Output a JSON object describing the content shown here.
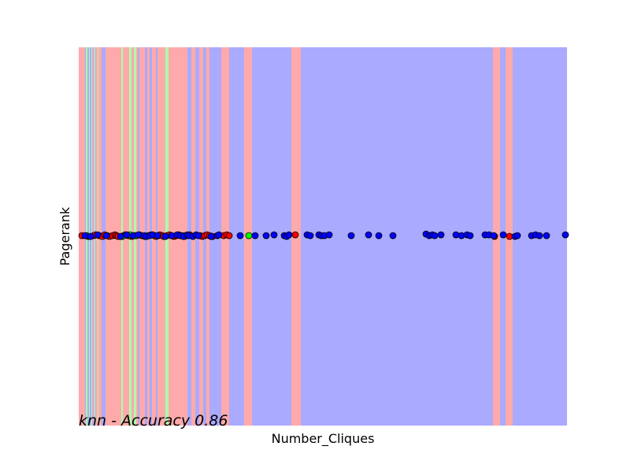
{
  "chart_data": {
    "type": "scatter",
    "title": "",
    "xlabel": "Number_Cliques",
    "ylabel": "Pagerank",
    "annotation": "knn - Accuracy 0.86",
    "xticks": [],
    "yticks": [],
    "xlim": [
      0,
      620
    ],
    "ylim": [
      0,
      480
    ],
    "grid": false,
    "legend": "none",
    "background_color": "#AAAAFF",
    "region_colors": {
      "red": "#FFAAAA",
      "blue": "#AAAAFF",
      "green": "#AAFFAA"
    },
    "decision_regions": [
      {
        "class": "red",
        "x0": 0,
        "x1": 8
      },
      {
        "class": "green",
        "x0": 9,
        "x1": 11
      },
      {
        "class": "green",
        "x0": 13,
        "x1": 14
      },
      {
        "class": "green",
        "x0": 16,
        "x1": 17
      },
      {
        "class": "red",
        "x0": 18,
        "x1": 20
      },
      {
        "class": "green",
        "x0": 20,
        "x1": 21
      },
      {
        "class": "red",
        "x0": 22,
        "x1": 24
      },
      {
        "class": "green",
        "x0": 24,
        "x1": 25
      },
      {
        "class": "red",
        "x0": 25,
        "x1": 29
      },
      {
        "class": "red",
        "x0": 34,
        "x1": 54
      },
      {
        "class": "green",
        "x0": 54,
        "x1": 56
      },
      {
        "class": "red",
        "x0": 56,
        "x1": 64
      },
      {
        "class": "green",
        "x0": 64,
        "x1": 67
      },
      {
        "class": "red",
        "x0": 67,
        "x1": 70
      },
      {
        "class": "green",
        "x0": 70,
        "x1": 73
      },
      {
        "class": "red",
        "x0": 73,
        "x1": 75
      },
      {
        "class": "red",
        "x0": 77,
        "x1": 84
      },
      {
        "class": "red",
        "x0": 87,
        "x1": 90
      },
      {
        "class": "red",
        "x0": 93,
        "x1": 98
      },
      {
        "class": "red",
        "x0": 100,
        "x1": 110
      },
      {
        "class": "green",
        "x0": 110,
        "x1": 114
      },
      {
        "class": "red",
        "x0": 114,
        "x1": 138
      },
      {
        "class": "red",
        "x0": 143,
        "x1": 148
      },
      {
        "class": "red",
        "x0": 153,
        "x1": 158
      },
      {
        "class": "red",
        "x0": 162,
        "x1": 166
      },
      {
        "class": "red",
        "x0": 181,
        "x1": 191
      },
      {
        "class": "red",
        "x0": 210,
        "x1": 220
      },
      {
        "class": "red",
        "x0": 270,
        "x1": 282
      },
      {
        "class": "red",
        "x0": 526,
        "x1": 535
      },
      {
        "class": "red",
        "x0": 542,
        "x1": 551
      }
    ],
    "point_colors": {
      "red": "#FF0000",
      "blue": "#0000FF",
      "green": "#00FF00"
    },
    "series": [
      {
        "class": "red",
        "x": [
          4,
          12,
          19,
          21,
          26,
          30,
          33,
          36,
          39,
          43,
          46,
          48,
          50,
          57,
          59,
          63,
          67,
          71,
          73,
          77,
          80,
          84,
          88,
          92,
          96,
          98,
          101,
          103,
          106,
          108,
          112,
          115,
          118,
          121,
          124,
          127,
          130,
          134,
          137,
          141,
          154,
          157,
          160,
          163,
          166,
          170,
          184,
          188,
          191,
          275,
          528,
          547
        ],
        "y": [
          241,
          240,
          241,
          242,
          241,
          240,
          242,
          241,
          240,
          241,
          242,
          241,
          240,
          241,
          242,
          241,
          240,
          241,
          241,
          242,
          241,
          240,
          241,
          242,
          241,
          240,
          241,
          242,
          241,
          240,
          241,
          242,
          241,
          240,
          241,
          242,
          241,
          240,
          241,
          242,
          241,
          240,
          241,
          242,
          241,
          240,
          241,
          242,
          241,
          242,
          240,
          240
        ]
      },
      {
        "class": "green",
        "x": [
          10,
          55,
          65,
          72,
          134,
          216
        ],
        "y": [
          241,
          240,
          242,
          241,
          241,
          241
        ]
      },
      {
        "class": "blue",
        "x": [
          8,
          15,
          24,
          35,
          53,
          61,
          69,
          76,
          83,
          86,
          90,
          94,
          100,
          110,
          118,
          125,
          129,
          133,
          138,
          140,
          145,
          149,
          152,
          168,
          176,
          178,
          205,
          224,
          238,
          248,
          261,
          264,
          267,
          290,
          294,
          305,
          308,
          312,
          318,
          346,
          368,
          381,
          399,
          441,
          445,
          449,
          452,
          460,
          479,
          486,
          493,
          497,
          516,
          521,
          527,
          539,
          554,
          557,
          575,
          580,
          585,
          594,
          618
        ],
        "y": [
          241,
          240,
          242,
          241,
          240,
          242,
          241,
          242,
          241,
          240,
          241,
          242,
          241,
          240,
          241,
          242,
          241,
          240,
          242,
          241,
          240,
          242,
          241,
          240,
          241,
          242,
          241,
          241,
          241,
          242,
          241,
          240,
          242,
          242,
          241,
          242,
          241,
          241,
          242,
          241,
          242,
          241,
          241,
          243,
          241,
          242,
          241,
          242,
          242,
          241,
          242,
          241,
          242,
          242,
          241,
          242,
          240,
          241,
          241,
          242,
          241,
          241,
          242
        ]
      }
    ]
  }
}
